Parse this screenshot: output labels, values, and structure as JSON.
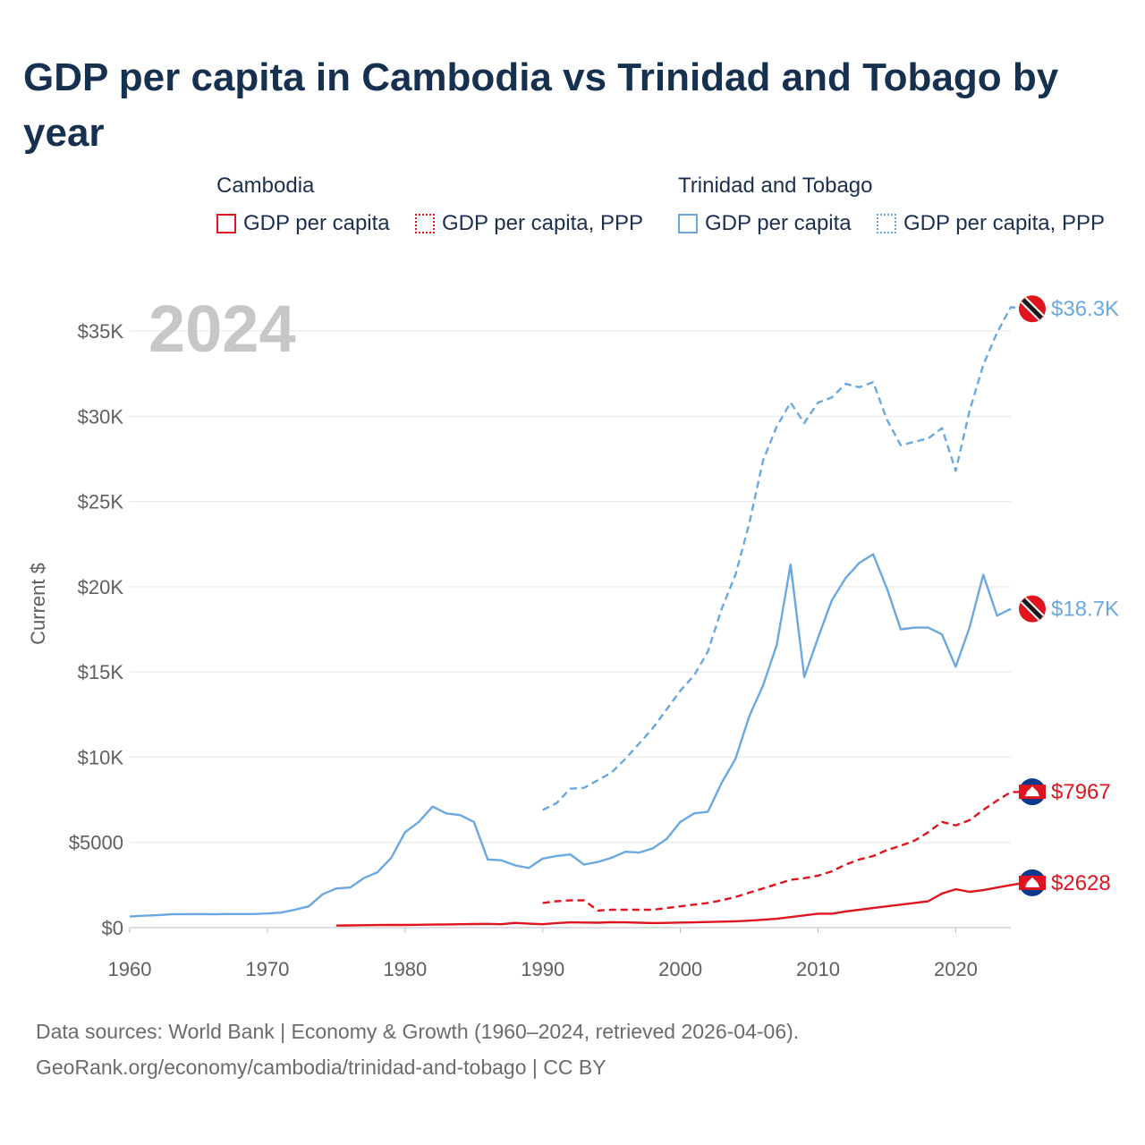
{
  "title": "GDP per capita in Cambodia vs Trinidad and Tobago by year",
  "legend": {
    "groups": [
      {
        "name": "Cambodia",
        "color": "#e0141e",
        "items": [
          {
            "label": "GDP per capita",
            "style": "solid"
          },
          {
            "label": "GDP per capita, PPP",
            "style": "dotted"
          }
        ]
      },
      {
        "name": "Trinidad and Tobago",
        "color": "#6aa8e2",
        "items": [
          {
            "label": "GDP per capita",
            "style": "solid"
          },
          {
            "label": "GDP per capita, PPP",
            "style": "dotted"
          }
        ]
      }
    ]
  },
  "footer": {
    "line1": "Data sources: World Bank | Economy & Growth (1960–2024, retrieved 2026-04-06).",
    "line2": "GeoRank.org/economy/cambodia/trinidad-and-tobago | CC BY"
  },
  "chart_data": {
    "type": "line",
    "year_label": "2024",
    "ylabel": "Current $",
    "xlim": [
      1960,
      2024
    ],
    "ylim": [
      0,
      37000
    ],
    "x_ticks": [
      1960,
      1970,
      1980,
      1990,
      2000,
      2010,
      2020
    ],
    "x_tick_labels": [
      "1960",
      "1970",
      "1980",
      "1990",
      "2000",
      "2010",
      "2020"
    ],
    "y_ticks": [
      0,
      5000,
      10000,
      15000,
      20000,
      25000,
      30000,
      35000
    ],
    "y_tick_labels": [
      "$0",
      "$5000",
      "$10K",
      "$15K",
      "$20K",
      "$25K",
      "$30K",
      "$35K"
    ],
    "series": [
      {
        "name": "Trinidad and Tobago GDP per capita, PPP",
        "country": "Trinidad and Tobago",
        "color": "#6aa8e2",
        "dash": true,
        "end_label": "$36.3K",
        "start_year": 1990,
        "values": [
          6900,
          7300,
          8150,
          8200,
          8650,
          9100,
          9900,
          10800,
          11700,
          12800,
          13900,
          14800,
          16200,
          18700,
          20700,
          23700,
          27400,
          29400,
          30800,
          29600,
          30800,
          31100,
          31900,
          31700,
          32000,
          29800,
          28300,
          28500,
          28700,
          29300,
          26800,
          30300,
          33000,
          34900,
          36400,
          36300
        ]
      },
      {
        "name": "Trinidad and Tobago GDP per capita",
        "country": "Trinidad and Tobago",
        "color": "#6aa8e2",
        "dash": false,
        "end_label": "$18.7K",
        "start_year": 1960,
        "values": [
          650,
          700,
          730,
          780,
          790,
          800,
          780,
          800,
          800,
          800,
          830,
          880,
          1050,
          1250,
          1950,
          2300,
          2350,
          2900,
          3250,
          4100,
          5600,
          6200,
          7100,
          6700,
          6600,
          6200,
          4000,
          3950,
          3650,
          3500,
          4050,
          4200,
          4300,
          3700,
          3850,
          4100,
          4450,
          4400,
          4650,
          5200,
          6200,
          6700,
          6800,
          8500,
          9900,
          12400,
          14200,
          16600,
          21300,
          14700,
          17000,
          19200,
          20500,
          21400,
          21900,
          19900,
          17500,
          17600,
          17600,
          17200,
          15300,
          17600,
          20700,
          18300,
          18700
        ]
      },
      {
        "name": "Cambodia GDP per capita, PPP",
        "country": "Cambodia",
        "color": "#e0141e",
        "dash": true,
        "end_label": "$7967",
        "start_year": 1990,
        "values": [
          1450,
          1550,
          1600,
          1600,
          1000,
          1050,
          1050,
          1050,
          1050,
          1150,
          1250,
          1350,
          1450,
          1600,
          1800,
          2050,
          2300,
          2550,
          2800,
          2900,
          3050,
          3300,
          3700,
          4000,
          4200,
          4550,
          4800,
          5100,
          5600,
          6200,
          6000,
          6300,
          6900,
          7450,
          7950,
          7967
        ]
      },
      {
        "name": "Cambodia GDP per capita",
        "country": "Cambodia",
        "color": "#e0141e",
        "dash": false,
        "end_label": "$2628",
        "start_year": 1975,
        "values": [
          120,
          130,
          140,
          150,
          160,
          160,
          170,
          180,
          190,
          200,
          210,
          220,
          200,
          280,
          230,
          200,
          270,
          310,
          300,
          290,
          320,
          310,
          290,
          270,
          280,
          300,
          310,
          330,
          350,
          370,
          410,
          460,
          520,
          620,
          720,
          820,
          820,
          950,
          1050,
          1150,
          1250,
          1350,
          1450,
          1550,
          2000,
          2250,
          2100,
          2200,
          2350,
          2500,
          2628
        ]
      }
    ]
  }
}
